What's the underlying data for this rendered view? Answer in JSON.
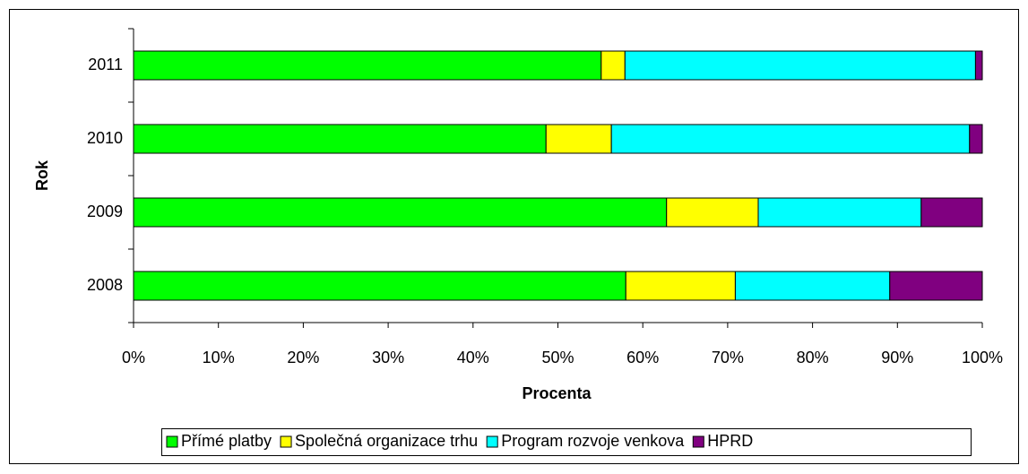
{
  "chart_data": {
    "type": "stacked_barh",
    "xlabel": "Procenta",
    "ylabel": "Rok",
    "categories": [
      "2008",
      "2009",
      "2010",
      "2011"
    ],
    "series": [
      {
        "name": "Přímé platby",
        "color": "#00ff00",
        "values": [
          58.0,
          62.8,
          48.6,
          55.1
        ]
      },
      {
        "name": "Společná organizace trhu",
        "color": "#ffff00",
        "values": [
          12.9,
          10.8,
          7.7,
          2.8
        ]
      },
      {
        "name": "Program rozvoje venkova",
        "color": "#00ffff",
        "values": [
          18.2,
          19.2,
          42.2,
          41.3
        ]
      },
      {
        "name": "HPRD",
        "color": "#800080",
        "values": [
          10.9,
          7.2,
          1.5,
          0.8
        ]
      }
    ],
    "xlim": [
      0,
      100
    ],
    "xticks": [
      {
        "value": 0,
        "label": "0%"
      },
      {
        "value": 10,
        "label": "10%"
      },
      {
        "value": 20,
        "label": "20%"
      },
      {
        "value": 30,
        "label": "30%"
      },
      {
        "value": 40,
        "label": "40%"
      },
      {
        "value": 50,
        "label": "50%"
      },
      {
        "value": 60,
        "label": "60%"
      },
      {
        "value": 70,
        "label": "70%"
      },
      {
        "value": 80,
        "label": "80%"
      },
      {
        "value": 90,
        "label": "90%"
      },
      {
        "value": 100,
        "label": "100%"
      }
    ],
    "legend": "bottom",
    "grid": false
  }
}
